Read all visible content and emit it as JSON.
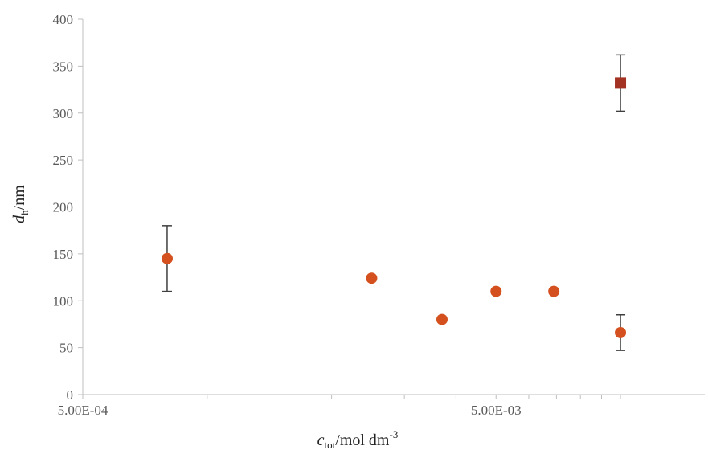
{
  "chart_data": {
    "type": "scatter",
    "x_scale": "log",
    "xlim": [
      0.0005,
      0.016
    ],
    "ylim": [
      0,
      400
    ],
    "y_ticks": [
      0,
      50,
      100,
      150,
      200,
      250,
      300,
      350,
      400
    ],
    "x_tick_labels": [
      {
        "value": 0.0005,
        "label": "5.00E-04"
      },
      {
        "value": 0.005,
        "label": "5.00E-03"
      }
    ],
    "x_minor_ticks": [
      0.0005,
      0.001,
      0.002,
      0.003,
      0.004,
      0.005,
      0.006,
      0.007,
      0.008,
      0.009,
      0.01
    ],
    "xlabel": {
      "main": "c",
      "sub": "tot",
      "unit": "/mol dm",
      "sup": "-3"
    },
    "ylabel": {
      "main": "d",
      "sub": "h",
      "unit": "/nm"
    },
    "grid": false,
    "series": [
      {
        "marker": "circle",
        "color": "#d4501e",
        "points": [
          {
            "x": 0.0008,
            "y": 145,
            "err": 35
          },
          {
            "x": 0.0025,
            "y": 124
          },
          {
            "x": 0.0037,
            "y": 80
          },
          {
            "x": 0.005,
            "y": 110
          },
          {
            "x": 0.0069,
            "y": 110
          },
          {
            "x": 0.01,
            "y": 66,
            "err": 19
          }
        ]
      },
      {
        "marker": "square",
        "color": "#a33222",
        "points": [
          {
            "x": 0.01,
            "y": 332,
            "err": 30
          }
        ]
      }
    ]
  }
}
